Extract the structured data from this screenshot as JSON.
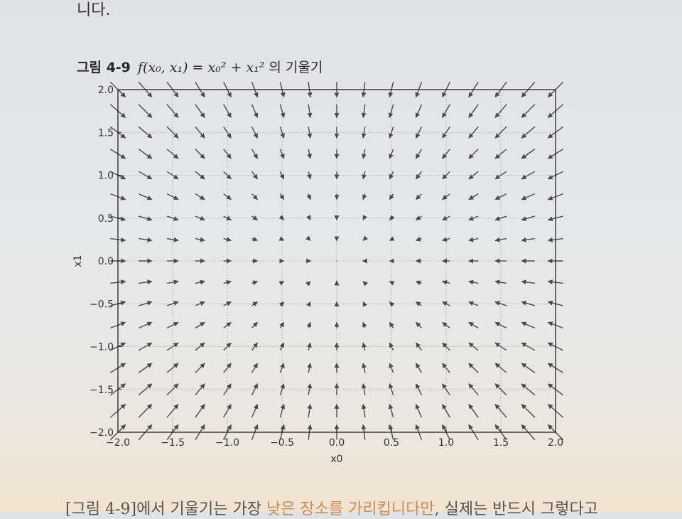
{
  "page": {
    "top_text": "니다.",
    "caption": {
      "figure_number": "그림 4-9",
      "formula": "f(x₀, x₁) = x₀² + x₁²",
      "suffix": "의 기울기"
    },
    "bottom_text": {
      "part1": "[그림 4-9]에서 기울기는 가장 ",
      "part2": "낮은 장소를 가리킵니다만",
      "part3": ", 실제는 반드시 그렇다고"
    }
  },
  "colors": {
    "arrow": "#4a4a4a",
    "axes": "#222222",
    "grid": "#9a9a9a"
  },
  "chart_data": {
    "type": "quiver",
    "function": "x0^2 + x1^2",
    "vector_field": "negative gradient: (-2*x0, -2*x1), normalized for display",
    "x": [
      -2.0,
      -1.75,
      -1.5,
      -1.25,
      -1.0,
      -0.75,
      -0.5,
      -0.25,
      0.0,
      0.25,
      0.5,
      0.75,
      1.0,
      1.25,
      1.5,
      1.75,
      2.0
    ],
    "y": [
      -2.0,
      -1.75,
      -1.5,
      -1.25,
      -1.0,
      -0.75,
      -0.5,
      -0.25,
      0.0,
      0.25,
      0.5,
      0.75,
      1.0,
      1.25,
      1.5,
      1.75,
      2.0
    ],
    "xlabel": "x0",
    "ylabel": "x1",
    "xlim": [
      -2.0,
      2.0
    ],
    "ylim": [
      -2.0,
      2.0
    ],
    "xticks": [
      "−2.0",
      "−1.5",
      "−1.0",
      "−0.5",
      "0.0",
      "0.5",
      "1.0",
      "1.5",
      "2.0"
    ],
    "yticks": [
      "−2.0",
      "−1.5",
      "−1.0",
      "−0.5",
      "0.0",
      "0.5",
      "1.0",
      "1.5",
      "2.0"
    ],
    "grid": true
  }
}
